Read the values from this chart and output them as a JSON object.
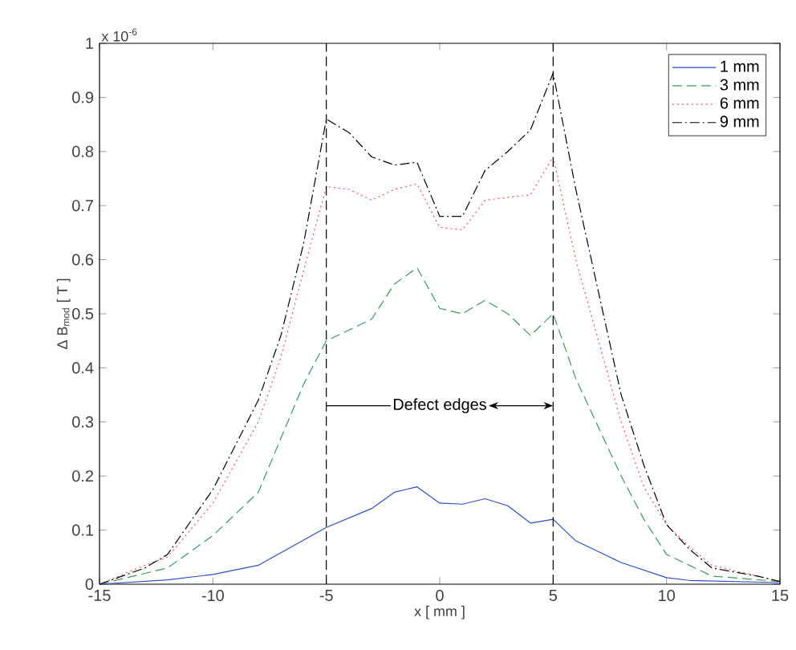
{
  "chart_data": {
    "type": "line",
    "xlabel": "x [ mm ]",
    "ylabel": "Δ B$_{mod}$ [ T ]",
    "annotations": [
      "x 10$^{-6}$",
      {
        "text": "Defect edges",
        "x": 5,
        "y": 0.33
      }
    ],
    "xlim": [
      -15,
      15
    ],
    "ylim": [
      0,
      1
    ],
    "xticks": [
      -15,
      -10,
      -5,
      0,
      5,
      10,
      15
    ],
    "yticks": [
      0,
      0.1,
      0.2,
      0.3,
      0.4,
      0.5,
      0.6,
      0.7,
      0.8,
      0.9,
      1
    ],
    "legend": "top right",
    "marker": "none",
    "grid": false,
    "ref_lines": [
      {
        "axis": "x",
        "value": -5,
        "label": null,
        "color": "#000000",
        "line_style": "dashed"
      },
      {
        "axis": "x",
        "value": 5,
        "label": null,
        "color": "#000000",
        "line_style": "dashed"
      }
    ],
    "series": [
      {
        "name": "1 mm",
        "color": "#2e4fc0",
        "line_style": "solid",
        "x": [
          -15,
          -12,
          -10,
          -8,
          -5,
          -3,
          -2,
          -1,
          0,
          1,
          2,
          3,
          4,
          5,
          6,
          8,
          10,
          11,
          15
        ],
        "values": [
          0,
          0.008,
          0.018,
          0.035,
          0.105,
          0.14,
          0.17,
          0.18,
          0.15,
          0.148,
          0.158,
          0.145,
          0.113,
          0.12,
          0.08,
          0.04,
          0.012,
          0.007,
          0.003
        ]
      },
      {
        "name": "3 mm",
        "color": "#3a9a5a",
        "line_style": "dashed",
        "x": [
          -15,
          -12,
          -10,
          -8,
          -7,
          -6,
          -5,
          -4,
          -3,
          -2,
          -1,
          0,
          1,
          2,
          3,
          4,
          5,
          6,
          7,
          8,
          9,
          10,
          11,
          12,
          15
        ],
        "values": [
          0,
          0.03,
          0.09,
          0.17,
          0.27,
          0.37,
          0.45,
          0.47,
          0.49,
          0.555,
          0.585,
          0.51,
          0.5,
          0.525,
          0.5,
          0.46,
          0.5,
          0.38,
          0.29,
          0.2,
          0.12,
          0.055,
          0.035,
          0.015,
          0.005
        ]
      },
      {
        "name": "6 mm",
        "color": "#ff5050",
        "line_style": "dotted",
        "x": [
          -15,
          -13,
          -12,
          -10,
          -8,
          -7,
          -6,
          -5,
          -4,
          -3,
          -2,
          -1,
          0,
          1,
          2,
          3,
          4,
          5,
          6,
          7,
          8,
          9,
          10,
          11,
          12,
          15
        ],
        "values": [
          0,
          0.035,
          0.05,
          0.15,
          0.3,
          0.42,
          0.58,
          0.735,
          0.73,
          0.71,
          0.73,
          0.74,
          0.66,
          0.655,
          0.71,
          0.715,
          0.72,
          0.79,
          0.6,
          0.45,
          0.3,
          0.18,
          0.11,
          0.07,
          0.035,
          0.005
        ]
      },
      {
        "name": "9 mm",
        "color": "#000000",
        "line_style": "dashdot",
        "x": [
          -15,
          -13,
          -12,
          -10,
          -8,
          -7,
          -6,
          -5,
          -4,
          -3,
          -2,
          -1,
          0,
          1,
          2,
          3,
          4,
          5,
          6,
          7,
          8,
          9,
          10,
          11,
          12,
          14,
          15
        ],
        "values": [
          0,
          0.03,
          0.055,
          0.175,
          0.34,
          0.46,
          0.63,
          0.86,
          0.835,
          0.79,
          0.775,
          0.78,
          0.68,
          0.68,
          0.765,
          0.8,
          0.84,
          0.945,
          0.73,
          0.54,
          0.35,
          0.22,
          0.11,
          0.065,
          0.03,
          0.015,
          0.005
        ]
      }
    ]
  }
}
